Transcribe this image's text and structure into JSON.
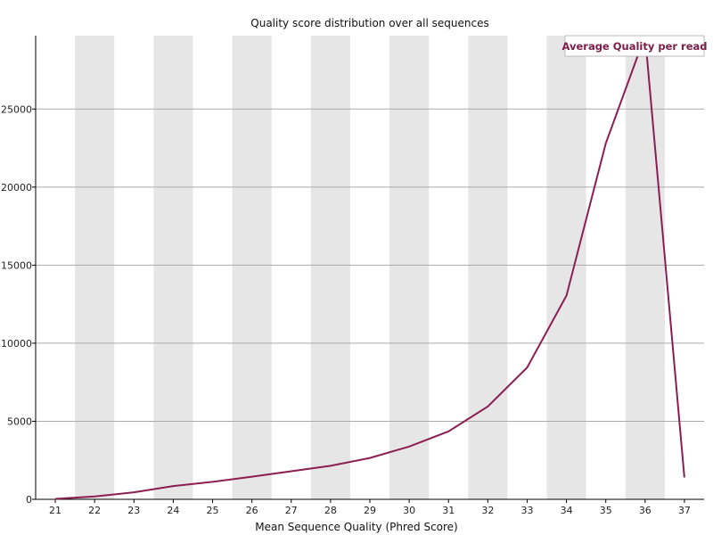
{
  "chart_data": {
    "type": "line",
    "title": "Quality score distribution over all sequences",
    "xlabel": "Mean Sequence Quality (Phred Score)",
    "ylabel": "",
    "x": [
      21,
      22,
      23,
      24,
      25,
      26,
      27,
      28,
      29,
      30,
      31,
      32,
      33,
      34,
      35,
      36,
      37
    ],
    "series": [
      {
        "name": "Average Quality per read",
        "color": "#8b1e52",
        "values": [
          30,
          180,
          450,
          850,
          1120,
          1450,
          1800,
          2150,
          2650,
          3380,
          4350,
          5950,
          8450,
          13050,
          22800,
          29700,
          1400
        ]
      }
    ],
    "ylim": [
      0,
      29700
    ],
    "yticks": [
      0,
      5000,
      10000,
      15000,
      20000,
      25000
    ],
    "grid": true,
    "alternating_bands": true,
    "band_color": "#e6e6e6",
    "legend_position": "top-right"
  }
}
